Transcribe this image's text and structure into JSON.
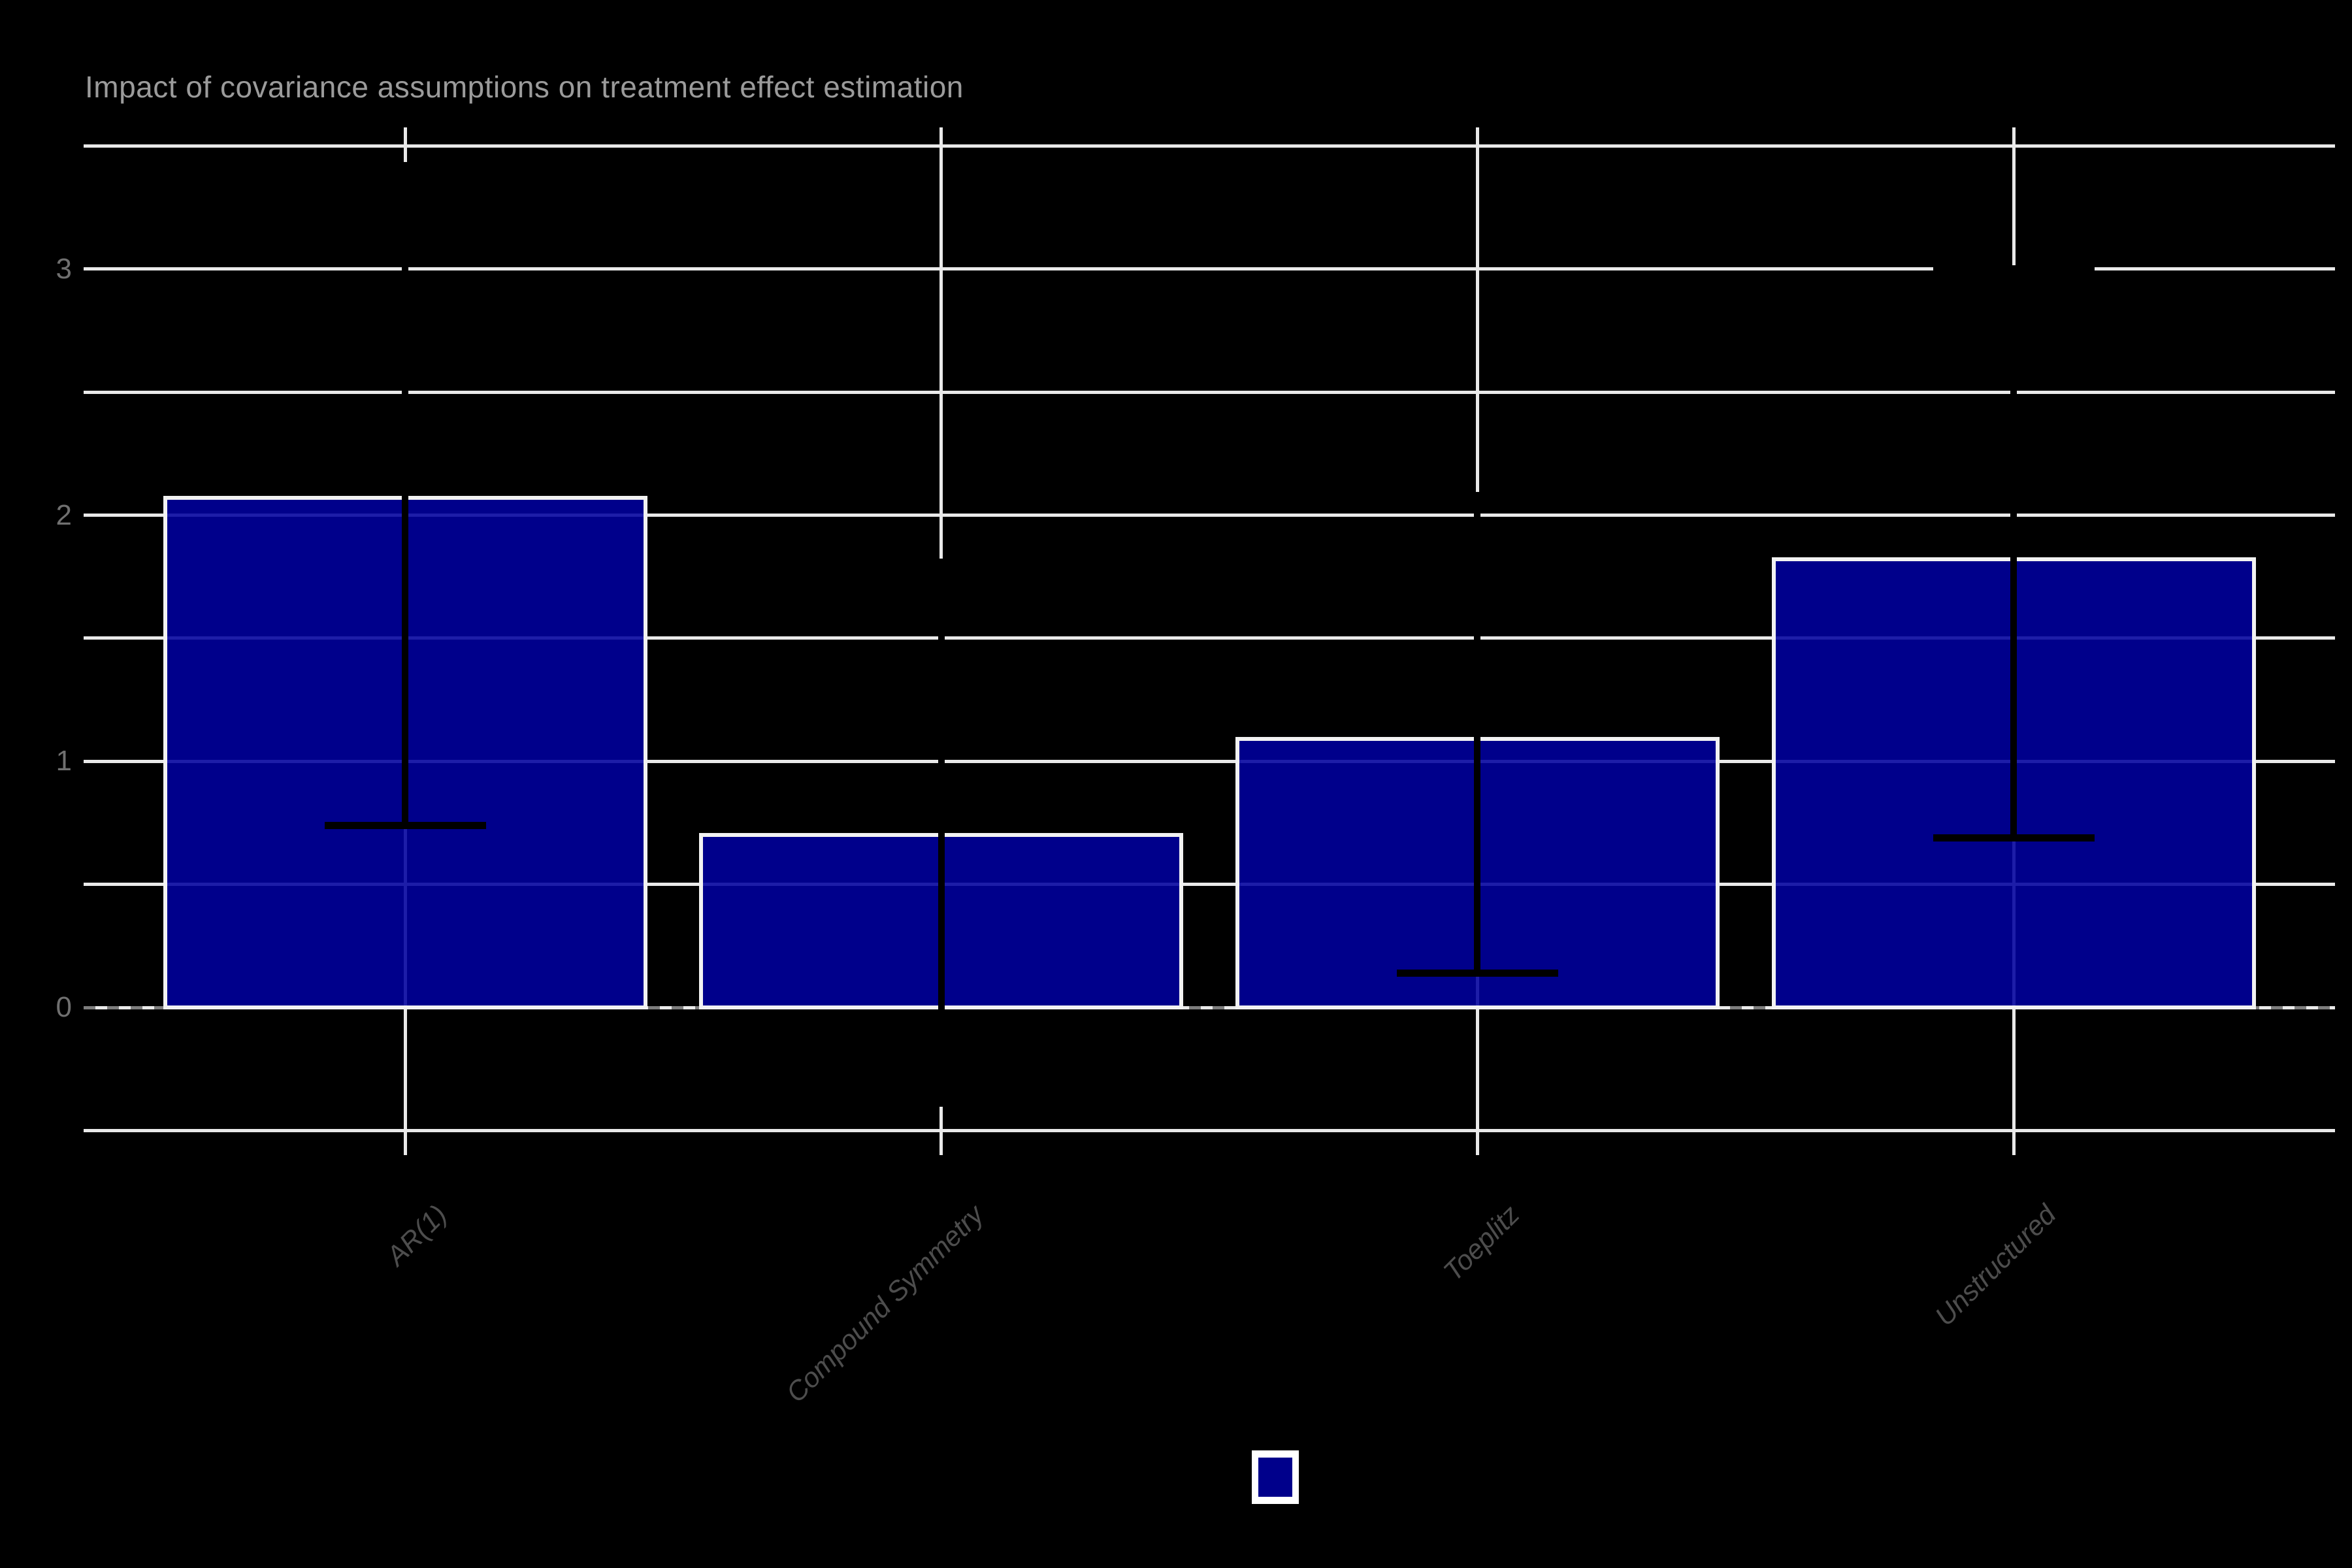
{
  "chart_data": {
    "type": "bar",
    "title": "Impact of covariance assumptions on treatment effect estimation",
    "categories": [
      "AR(1)",
      "Compound Symmetry",
      "Toeplitz",
      "Unstructured"
    ],
    "values": [
      2.07,
      0.7,
      1.09,
      1.82
    ],
    "error_bars": {
      "low": [
        0.74,
        -0.39,
        0.14,
        0.69
      ],
      "high": [
        3.42,
        1.81,
        2.08,
        3.0
      ]
    },
    "xlabel": "",
    "ylabel": "",
    "y_ticks": [
      0,
      1,
      2,
      3
    ],
    "ylim": [
      -0.6,
      3.57
    ],
    "grid": {
      "show": true,
      "interval": 0.5,
      "min": -0.5,
      "max": 3.5
    },
    "zero_reference_line": {
      "style": "dashed"
    },
    "legend": {
      "position": "bottom-center",
      "labels_visible": false
    }
  },
  "style": {
    "background": "#000000",
    "bar_fill_rgba": "rgba(0,0,158,0.88)",
    "legend_fill": "#00008b",
    "bar_border": "#f2f2f2",
    "grid_color": "#e9e9e9",
    "error_bar_color": "#000000",
    "zero_line_color": "#7d7d7d",
    "title_color": "#9b9b9b",
    "y_label_color": "#707070",
    "x_label_color": "#4d4d4d"
  }
}
